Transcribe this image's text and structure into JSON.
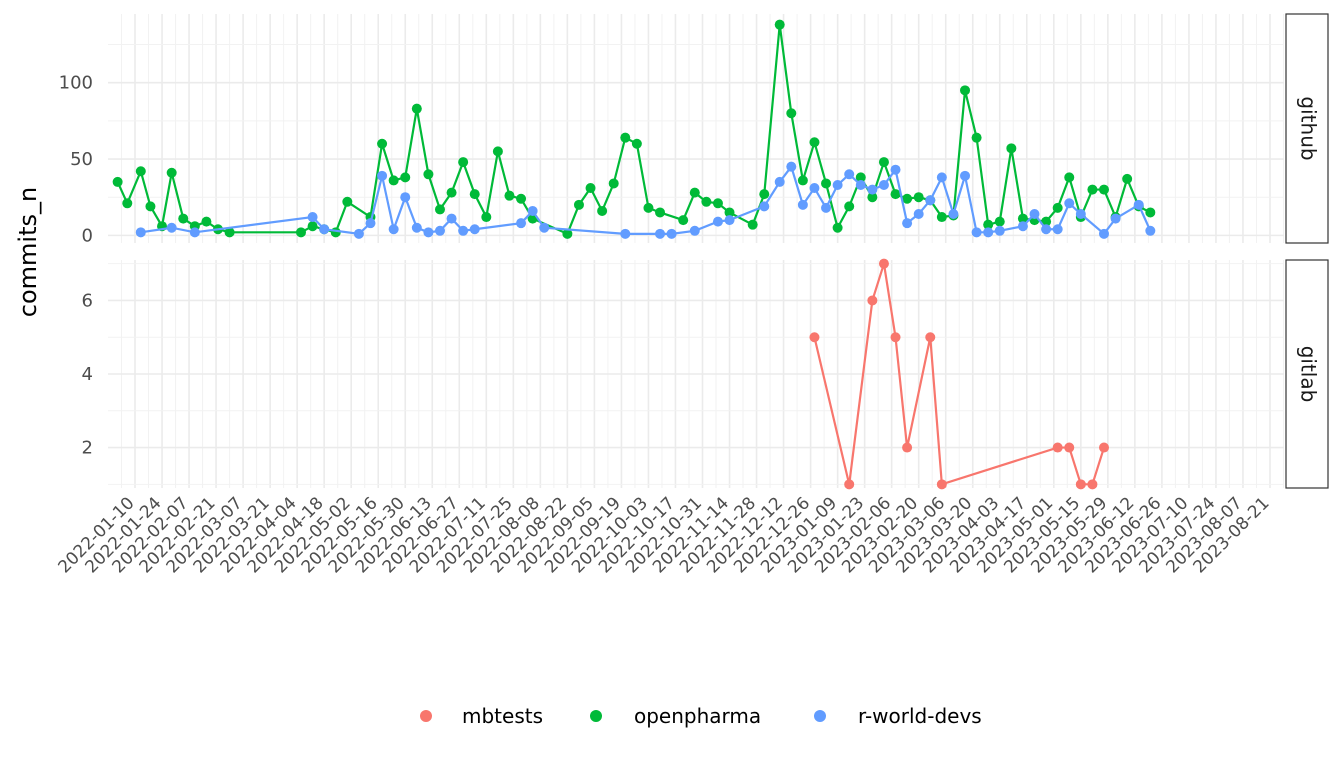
{
  "chart_data": {
    "type": "line",
    "ylabel": "commits_n",
    "xlabel": "",
    "x_tick_labels": [
      "2022-01-10",
      "2022-01-24",
      "2022-02-07",
      "2022-02-21",
      "2022-03-07",
      "2022-03-21",
      "2022-04-04",
      "2022-04-18",
      "2022-05-02",
      "2022-05-16",
      "2022-05-30",
      "2022-06-13",
      "2022-06-27",
      "2022-07-11",
      "2022-07-25",
      "2022-08-08",
      "2022-08-22",
      "2022-09-05",
      "2022-09-19",
      "2022-10-03",
      "2022-10-17",
      "2022-10-31",
      "2022-11-14",
      "2022-11-28",
      "2022-12-12",
      "2022-12-26",
      "2023-01-09",
      "2023-01-23",
      "2023-02-06",
      "2023-02-20",
      "2023-03-06",
      "2023-03-20",
      "2023-04-03",
      "2023-04-17",
      "2023-05-01",
      "2023-05-15",
      "2023-05-29",
      "2023-06-12",
      "2023-06-26",
      "2023-07-10",
      "2023-07-24",
      "2023-08-07",
      "2023-08-21"
    ],
    "legend": {
      "position": "bottom",
      "entries": [
        {
          "name": "mbtests",
          "color": "#F8766D"
        },
        {
          "name": "openpharma",
          "color": "#00BA38"
        },
        {
          "name": "r-world-devs",
          "color": "#619CFF"
        }
      ]
    },
    "grid": true,
    "facets": [
      {
        "label": "github",
        "y_ticks": [
          0,
          50,
          100
        ],
        "ylim": [
          -5,
          145
        ],
        "series": [
          {
            "name": "openpharma",
            "color": "#00BA38",
            "points": [
              [
                "2022-01-01",
                35
              ],
              [
                "2022-01-06",
                21
              ],
              [
                "2022-01-13",
                42
              ],
              [
                "2022-01-18",
                19
              ],
              [
                "2022-01-24",
                6
              ],
              [
                "2022-01-29",
                41
              ],
              [
                "2022-02-04",
                11
              ],
              [
                "2022-02-10",
                6
              ],
              [
                "2022-02-16",
                9
              ],
              [
                "2022-02-22",
                4
              ],
              [
                "2022-02-28",
                2
              ],
              [
                "2022-04-06",
                2
              ],
              [
                "2022-04-12",
                6
              ],
              [
                "2022-04-18",
                4
              ],
              [
                "2022-04-24",
                2
              ],
              [
                "2022-04-30",
                22
              ],
              [
                "2022-05-12",
                12
              ],
              [
                "2022-05-18",
                60
              ],
              [
                "2022-05-24",
                36
              ],
              [
                "2022-05-30",
                38
              ],
              [
                "2022-06-05",
                83
              ],
              [
                "2022-06-11",
                40
              ],
              [
                "2022-06-17",
                17
              ],
              [
                "2022-06-23",
                28
              ],
              [
                "2022-06-29",
                48
              ],
              [
                "2022-07-05",
                27
              ],
              [
                "2022-07-11",
                12
              ],
              [
                "2022-07-17",
                55
              ],
              [
                "2022-07-23",
                26
              ],
              [
                "2022-07-29",
                24
              ],
              [
                "2022-08-04",
                11
              ],
              [
                "2022-08-22",
                1
              ],
              [
                "2022-08-28",
                20
              ],
              [
                "2022-09-03",
                31
              ],
              [
                "2022-09-09",
                16
              ],
              [
                "2022-09-15",
                34
              ],
              [
                "2022-09-21",
                64
              ],
              [
                "2022-09-27",
                60
              ],
              [
                "2022-10-03",
                18
              ],
              [
                "2022-10-09",
                15
              ],
              [
                "2022-10-21",
                10
              ],
              [
                "2022-10-27",
                28
              ],
              [
                "2022-11-02",
                22
              ],
              [
                "2022-11-08",
                21
              ],
              [
                "2022-11-14",
                15
              ],
              [
                "2022-11-26",
                7
              ],
              [
                "2022-12-02",
                27
              ],
              [
                "2022-12-10",
                138
              ],
              [
                "2022-12-16",
                80
              ],
              [
                "2022-12-22",
                36
              ],
              [
                "2022-12-28",
                61
              ],
              [
                "2023-01-03",
                34
              ],
              [
                "2023-01-09",
                5
              ],
              [
                "2023-01-15",
                19
              ],
              [
                "2023-01-21",
                38
              ],
              [
                "2023-01-27",
                25
              ],
              [
                "2023-02-02",
                48
              ],
              [
                "2023-02-08",
                27
              ],
              [
                "2023-02-14",
                24
              ],
              [
                "2023-02-20",
                25
              ],
              [
                "2023-02-26",
                23
              ],
              [
                "2023-03-04",
                12
              ],
              [
                "2023-03-10",
                13
              ],
              [
                "2023-03-16",
                95
              ],
              [
                "2023-03-22",
                64
              ],
              [
                "2023-03-28",
                7
              ],
              [
                "2023-04-03",
                9
              ],
              [
                "2023-04-09",
                57
              ],
              [
                "2023-04-15",
                11
              ],
              [
                "2023-04-21",
                10
              ],
              [
                "2023-04-27",
                9
              ],
              [
                "2023-05-03",
                18
              ],
              [
                "2023-05-09",
                38
              ],
              [
                "2023-05-15",
                12
              ],
              [
                "2023-05-21",
                30
              ],
              [
                "2023-05-27",
                30
              ],
              [
                "2023-06-02",
                12
              ],
              [
                "2023-06-08",
                37
              ],
              [
                "2023-06-14",
                19
              ],
              [
                "2023-06-20",
                15
              ]
            ]
          },
          {
            "name": "r-world-devs",
            "color": "#619CFF",
            "points": [
              [
                "2022-01-13",
                2
              ],
              [
                "2022-01-29",
                5
              ],
              [
                "2022-02-10",
                2
              ],
              [
                "2022-04-12",
                12
              ],
              [
                "2022-04-18",
                4
              ],
              [
                "2022-05-06",
                1
              ],
              [
                "2022-05-12",
                8
              ],
              [
                "2022-05-18",
                39
              ],
              [
                "2022-05-24",
                4
              ],
              [
                "2022-05-30",
                25
              ],
              [
                "2022-06-05",
                5
              ],
              [
                "2022-06-11",
                2
              ],
              [
                "2022-06-17",
                3
              ],
              [
                "2022-06-23",
                11
              ],
              [
                "2022-06-29",
                3
              ],
              [
                "2022-07-05",
                4
              ],
              [
                "2022-07-29",
                8
              ],
              [
                "2022-08-04",
                16
              ],
              [
                "2022-08-10",
                5
              ],
              [
                "2022-09-21",
                1
              ],
              [
                "2022-10-09",
                1
              ],
              [
                "2022-10-15",
                1
              ],
              [
                "2022-10-27",
                3
              ],
              [
                "2022-11-08",
                9
              ],
              [
                "2022-11-14",
                10
              ],
              [
                "2022-12-02",
                19
              ],
              [
                "2022-12-10",
                35
              ],
              [
                "2022-12-16",
                45
              ],
              [
                "2022-12-22",
                20
              ],
              [
                "2022-12-28",
                31
              ],
              [
                "2023-01-03",
                18
              ],
              [
                "2023-01-09",
                33
              ],
              [
                "2023-01-15",
                40
              ],
              [
                "2023-01-21",
                33
              ],
              [
                "2023-01-27",
                30
              ],
              [
                "2023-02-02",
                33
              ],
              [
                "2023-02-08",
                43
              ],
              [
                "2023-02-14",
                8
              ],
              [
                "2023-02-20",
                14
              ],
              [
                "2023-02-26",
                23
              ],
              [
                "2023-03-04",
                38
              ],
              [
                "2023-03-10",
                14
              ],
              [
                "2023-03-16",
                39
              ],
              [
                "2023-03-22",
                2
              ],
              [
                "2023-03-28",
                2
              ],
              [
                "2023-04-03",
                3
              ],
              [
                "2023-04-15",
                6
              ],
              [
                "2023-04-21",
                14
              ],
              [
                "2023-04-27",
                4
              ],
              [
                "2023-05-03",
                4
              ],
              [
                "2023-05-09",
                21
              ],
              [
                "2023-05-15",
                14
              ],
              [
                "2023-05-27",
                1
              ],
              [
                "2023-06-02",
                11
              ],
              [
                "2023-06-14",
                20
              ],
              [
                "2023-06-20",
                3
              ]
            ]
          }
        ]
      },
      {
        "label": "gitlab",
        "y_ticks": [
          2,
          4,
          6
        ],
        "ylim": [
          0.9,
          7.1
        ],
        "series": [
          {
            "name": "mbtests",
            "color": "#F8766D",
            "points": [
              [
                "2022-12-28",
                5
              ],
              [
                "2023-01-15",
                1
              ],
              [
                "2023-01-27",
                6
              ],
              [
                "2023-02-02",
                7
              ],
              [
                "2023-02-08",
                5
              ],
              [
                "2023-02-14",
                2
              ],
              [
                "2023-02-26",
                5
              ],
              [
                "2023-03-04",
                1
              ],
              [
                "2023-05-03",
                2
              ],
              [
                "2023-05-09",
                2
              ],
              [
                "2023-05-15",
                1
              ],
              [
                "2023-05-21",
                1
              ],
              [
                "2023-05-27",
                2
              ]
            ]
          }
        ]
      }
    ]
  }
}
